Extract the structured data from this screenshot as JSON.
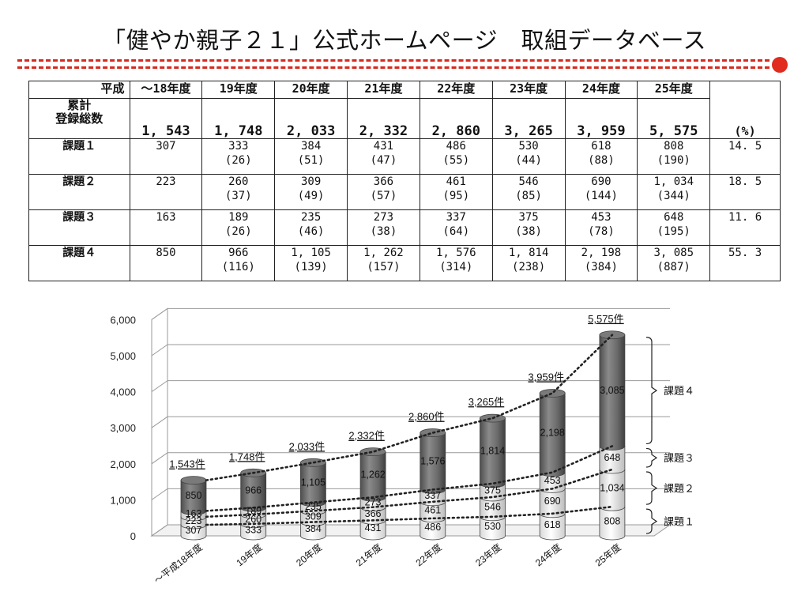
{
  "page": {
    "title": "「健やか親子２１」公式ホームページ　取組データベース"
  },
  "colors": {
    "accent": "#d42a1f",
    "dark_segment": "#6e6e6e",
    "light_segment": "#e2e2e2"
  },
  "table": {
    "corner_label": "平成",
    "years": [
      "～18年度",
      "19年度",
      "20年度",
      "21年度",
      "22年度",
      "23年度",
      "24年度",
      "25年度"
    ],
    "total_label_1": "累計",
    "total_label_2": "登録総数",
    "totals": [
      "1, 543",
      "1, 748",
      "2, 033",
      "2, 332",
      "2, 860",
      "3, 265",
      "3, 959",
      "5, 575"
    ],
    "pct_header": "(%)",
    "rows": [
      {
        "label": "課題１",
        "values": [
          "307",
          "333",
          "384",
          "431",
          "486",
          "530",
          "618",
          "808"
        ],
        "increments": [
          "",
          "(26)",
          "(51)",
          "(47)",
          "(55)",
          "(44)",
          "(88)",
          "(190)"
        ],
        "pct": "14. 5"
      },
      {
        "label": "課題２",
        "values": [
          "223",
          "260",
          "309",
          "366",
          "461",
          "546",
          "690",
          "1, 034"
        ],
        "increments": [
          "",
          "(37)",
          "(49)",
          "(57)",
          "(95)",
          "(85)",
          "(144)",
          "(344)"
        ],
        "pct": "18. 5"
      },
      {
        "label": "課題３",
        "values": [
          "163",
          "189",
          "235",
          "273",
          "337",
          "375",
          "453",
          "648"
        ],
        "increments": [
          "",
          "(26)",
          "(46)",
          "(38)",
          "(64)",
          "(38)",
          "(78)",
          "(195)"
        ],
        "pct": "11. 6"
      },
      {
        "label": "課題４",
        "values": [
          "850",
          "966",
          "1, 105",
          "1, 262",
          "1, 576",
          "1, 814",
          "2, 198",
          "3, 085"
        ],
        "increments": [
          "",
          "(116)",
          "(139)",
          "(157)",
          "(314)",
          "(238)",
          "(384)",
          "(887)"
        ],
        "pct": "55. 3"
      }
    ]
  },
  "chart_data": {
    "type": "bar",
    "stacked": true,
    "style": "3d-cylinder",
    "categories": [
      "～平成18年度",
      "19年度",
      "20年度",
      "21年度",
      "22年度",
      "23年度",
      "24年度",
      "25年度"
    ],
    "ytick_labels": [
      "0",
      "1,000",
      "2,000",
      "3,000",
      "4,000",
      "5,000",
      "6,000"
    ],
    "ylim": [
      0,
      6000
    ],
    "grid": true,
    "series": [
      {
        "name": "課題１",
        "values": [
          307,
          333,
          384,
          431,
          486,
          530,
          618,
          808
        ]
      },
      {
        "name": "課題２",
        "values": [
          223,
          260,
          309,
          366,
          461,
          546,
          690,
          1034
        ]
      },
      {
        "name": "課題３",
        "values": [
          163,
          189,
          235,
          273,
          337,
          375,
          453,
          648
        ]
      },
      {
        "name": "課題４",
        "values": [
          850,
          966,
          1105,
          1262,
          1576,
          1814,
          2198,
          3085
        ]
      }
    ],
    "total_labels": [
      "1,543件",
      "1,748件",
      "2,033件",
      "2,332件",
      "2,860件",
      "3,265件",
      "3,959件",
      "5,575件"
    ],
    "segment_labels": [
      [
        "307",
        "333",
        "384",
        "431",
        "486",
        "530",
        "618",
        "808"
      ],
      [
        "223",
        "260",
        "309",
        "366",
        "461",
        "546",
        "690",
        "1,034"
      ],
      [
        "163",
        "189",
        "235",
        "273",
        "337",
        "375",
        "453",
        "648"
      ],
      [
        "850",
        "966",
        "1,105",
        "1,262",
        "1,576",
        "1,814",
        "2,198",
        "3,085"
      ]
    ],
    "legend_placement": "right (brackets)"
  }
}
